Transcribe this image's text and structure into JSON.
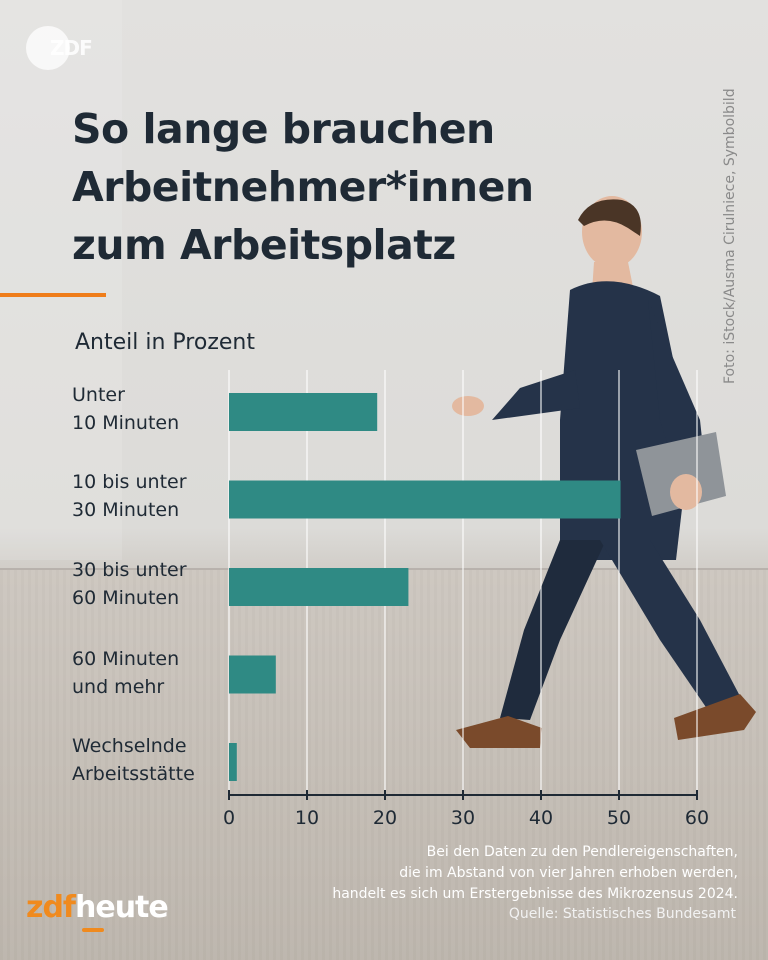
{
  "header": {
    "brand": "ZDF",
    "title_lines": [
      "So lange brauchen",
      "Arbeitnehmer*innen",
      "zum Arbeitsplatz"
    ],
    "accent_color": "#ef7d1a"
  },
  "photo_credit": "Foto: iStock/Ausma Cirulniece, Symbolbild",
  "chart_data": {
    "type": "bar",
    "orientation": "horizontal",
    "ylabel": "Anteil in Prozent",
    "categories": [
      [
        "Unter",
        "10 Minuten"
      ],
      [
        "10 bis unter",
        "30 Minuten"
      ],
      [
        "30 bis unter",
        "60 Minuten"
      ],
      [
        "60 Minuten",
        "und mehr"
      ],
      [
        "Wechselnde",
        "Arbeitsstätte"
      ]
    ],
    "values": [
      19,
      50.2,
      23,
      6,
      1
    ],
    "xlim": [
      0,
      60
    ],
    "xticks": [
      "0",
      "10",
      "20",
      "30",
      "40",
      "50",
      "60"
    ],
    "grid": true,
    "bar_color": "#2f8a84",
    "axis_color": "#1f2a35"
  },
  "footnote": {
    "lines": [
      "Bei den Daten zu den Pendlereigenschaften,",
      "die im Abstand von vier Jahren erhoben werden,",
      "handelt es sich um Erstergebnisse des Mikrozensus 2024."
    ],
    "source": "Quelle: Statistisches Bundesamt"
  },
  "footer_logo": {
    "part1": "zdf",
    "part2": "heute"
  }
}
